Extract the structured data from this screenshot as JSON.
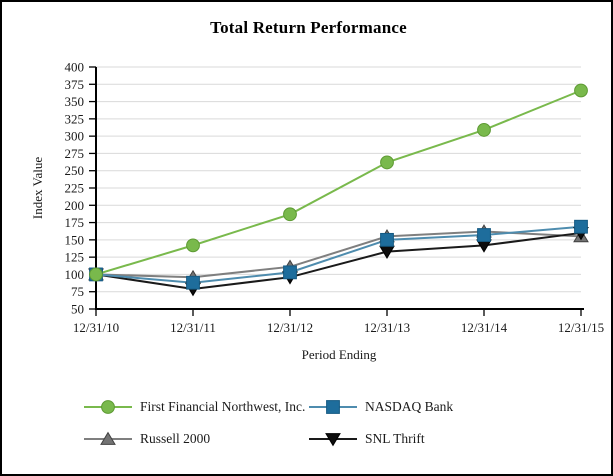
{
  "title": "Total Return Performance",
  "frame": {
    "background": "#ffffff",
    "border_color": "#000000"
  },
  "chart_data": {
    "type": "line",
    "title": "Total Return Performance",
    "xlabel": "Period Ending",
    "ylabel": "Index Value",
    "categories": [
      "12/31/10",
      "12/31/11",
      "12/31/12",
      "12/31/13",
      "12/31/14",
      "12/31/15"
    ],
    "ylim": [
      50,
      400
    ],
    "ytick_interval": 25,
    "grid": true,
    "gridline_color": "#d9d9d9",
    "axis_color": "#000000",
    "tick_label_color": "#1a1a1a",
    "legend_position": "bottom",
    "series": [
      {
        "name": "First Financial Northwest, Inc.",
        "marker": "circle",
        "line_color": "#79b94c",
        "marker_color": "#79b94c",
        "marker_stroke": "#5d9a33",
        "values": [
          100,
          142,
          187,
          262,
          309,
          366
        ]
      },
      {
        "name": "NASDAQ Bank",
        "marker": "square",
        "line_color": "#4e8cae",
        "marker_color": "#1e6d9c",
        "marker_stroke": "#155a83",
        "values": [
          100,
          88,
          103,
          150,
          157,
          169
        ]
      },
      {
        "name": "Russell 2000",
        "marker": "triangle-up",
        "line_color": "#7f7f7f",
        "marker_color": "#737373",
        "marker_stroke": "#404040",
        "values": [
          100,
          96,
          111,
          155,
          162,
          155
        ]
      },
      {
        "name": "SNL Thrift",
        "marker": "triangle-down",
        "line_color": "#1a1a1a",
        "marker_color": "#0d0d0d",
        "marker_stroke": "#000000",
        "values": [
          100,
          79,
          96,
          133,
          142,
          160
        ]
      }
    ]
  }
}
